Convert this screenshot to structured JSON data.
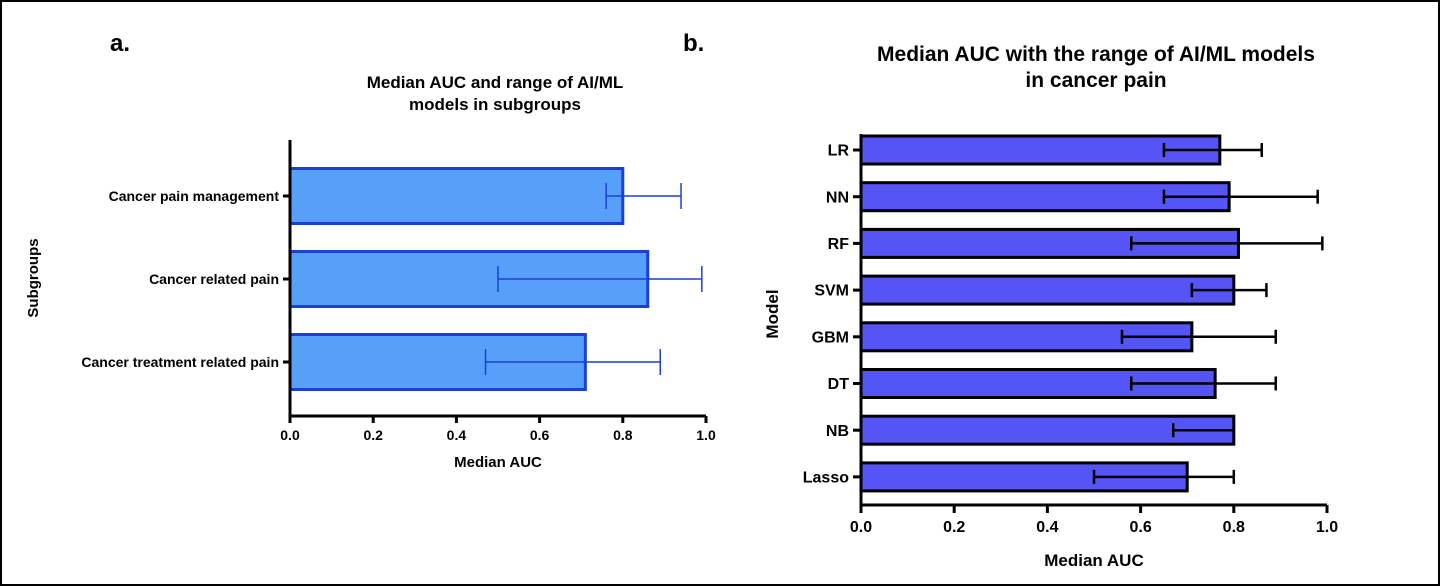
{
  "panels": {
    "a": "a.",
    "b": "b."
  },
  "chart_data": [
    {
      "type": "bar",
      "orientation": "horizontal",
      "title": [
        "Median AUC and range of AI/ML",
        "models in subgroups"
      ],
      "xlabel": "Median AUC",
      "ylabel": "Subgroups",
      "xlim": [
        0,
        1.0
      ],
      "ticks": [
        "0.0",
        "0.2",
        "0.4",
        "0.6",
        "0.8",
        "1.0"
      ],
      "tick_values": [
        0,
        0.2,
        0.4,
        0.6,
        0.8,
        1.0
      ],
      "categories": [
        "Cancer pain management",
        "Cancer related pain",
        "Cancer treatment related pain"
      ],
      "values": [
        0.8,
        0.86,
        0.71
      ],
      "ranges": [
        [
          0.76,
          0.94
        ],
        [
          0.5,
          0.99
        ],
        [
          0.47,
          0.89
        ]
      ],
      "grid": false,
      "bar_color": "#56a0fa",
      "edge_color": "#1c3fd6"
    },
    {
      "type": "bar",
      "orientation": "horizontal",
      "title": [
        "Median AUC with the range of AI/ML models",
        "in cancer pain"
      ],
      "xlabel": "Median AUC",
      "ylabel": "Model",
      "xlim": [
        0,
        1.0
      ],
      "ticks": [
        "0.0",
        "0.2",
        "0.4",
        "0.6",
        "0.8",
        "1.0"
      ],
      "tick_values": [
        0,
        0.2,
        0.4,
        0.6,
        0.8,
        1.0
      ],
      "categories": [
        "LR",
        "NN",
        "RF",
        "SVM",
        "GBM",
        "DT",
        "NB",
        "Lasso"
      ],
      "values": [
        0.77,
        0.79,
        0.81,
        0.8,
        0.71,
        0.76,
        0.8,
        0.7
      ],
      "ranges": [
        [
          0.65,
          0.86
        ],
        [
          0.65,
          0.98
        ],
        [
          0.58,
          0.99
        ],
        [
          0.71,
          0.87
        ],
        [
          0.56,
          0.89
        ],
        [
          0.58,
          0.89
        ],
        [
          0.67,
          0.8
        ],
        [
          0.5,
          0.8
        ]
      ],
      "grid": false,
      "bar_color": "#5555f5",
      "edge_color": "#000000"
    }
  ]
}
